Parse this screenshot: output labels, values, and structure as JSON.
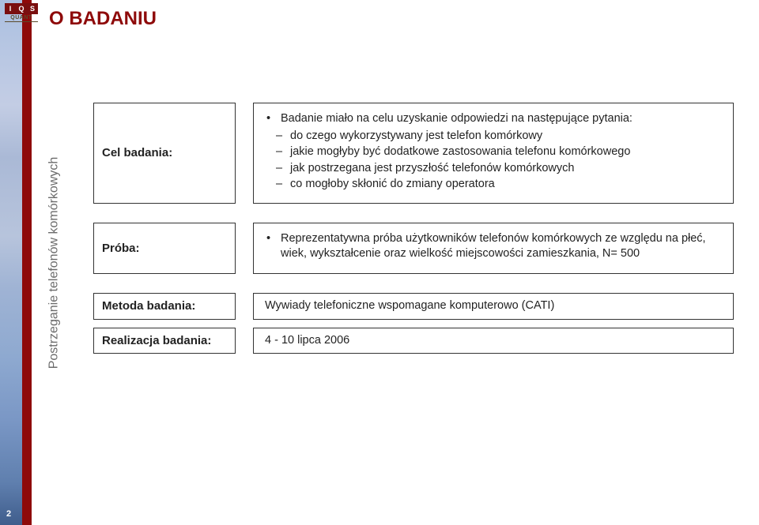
{
  "logo": {
    "l1": "I",
    "l2": "Q",
    "l3": "S",
    "sub": "QUANT"
  },
  "sidebar_label": "Postrzeganie telefonów komórkowych",
  "title": "O BADANIU",
  "rows": {
    "cel": {
      "label": "Cel badania:",
      "lead": "Badanie miało na celu uzyskanie odpowiedzi na następujące pytania:",
      "items": [
        "do czego wykorzystywany jest telefon komórkowy",
        "jakie mogłyby być dodatkowe zastosowania telefonu komórkowego",
        "jak postrzegana jest przyszłość telefonów komórkowych",
        "co mogłoby skłonić do zmiany operatora"
      ]
    },
    "proba": {
      "label": "Próba:",
      "text": "Reprezentatywna próba użytkowników telefonów komórkowych ze względu na płeć, wiek, wykształcenie oraz wielkość miejscowości zamieszkania, N= 500"
    },
    "metoda": {
      "label": "Metoda badania:",
      "text": "Wywiady telefoniczne wspomagane komputerowo (CATI)"
    },
    "realizacja": {
      "label": "Realizacja badania:",
      "text": "4 - 10 lipca 2006"
    }
  },
  "page_number": "2",
  "colors": {
    "accent_red": "#8e0a0a",
    "border": "#333333",
    "side_text": "#6b6b6b"
  }
}
